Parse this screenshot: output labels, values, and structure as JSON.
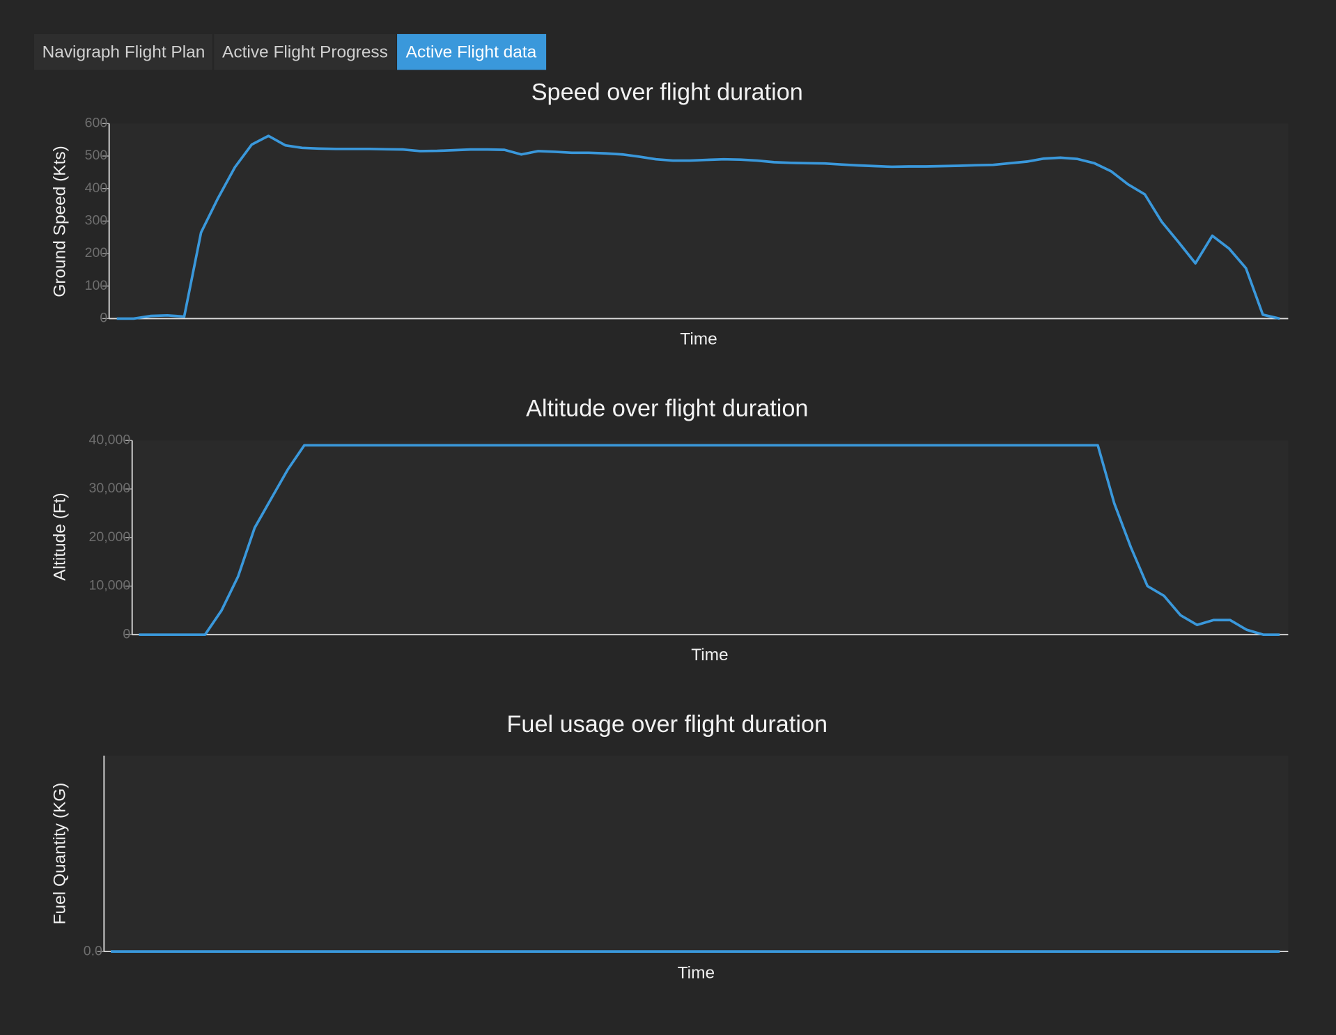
{
  "tabs": [
    "Navigraph Flight Plan",
    "Active Flight Progress",
    "Active Flight data"
  ],
  "chart_data": [
    {
      "type": "line",
      "title": "Speed over flight duration",
      "y_label": "Ground Speed (Kts)",
      "x_label": "Time",
      "color": "#3a98db",
      "values": [
        0,
        0,
        8,
        10,
        6,
        265,
        370,
        465,
        535,
        562,
        533,
        525,
        523,
        522,
        522,
        522,
        521,
        520,
        515,
        516,
        518,
        520,
        520,
        519,
        505,
        515,
        513,
        510,
        510,
        508,
        505,
        498,
        490,
        486,
        486,
        488,
        490,
        489,
        486,
        481,
        479,
        478,
        477,
        474,
        471,
        469,
        467,
        468,
        468,
        469,
        470,
        472,
        473,
        478,
        483,
        492,
        495,
        491,
        478,
        453,
        413,
        382,
        298,
        235,
        170,
        255,
        215,
        155,
        12,
        0
      ],
      "ylim": [
        0,
        600
      ],
      "yticks": [
        0,
        100,
        200,
        300,
        400,
        500,
        600
      ]
    },
    {
      "type": "line",
      "title": "Altitude over flight duration",
      "y_label": "Altitude (Ft)",
      "x_label": "Time",
      "color": "#3a98db",
      "values": [
        0,
        0,
        0,
        0,
        0,
        5000,
        12000,
        22000,
        28000,
        34000,
        39000,
        39000,
        39000,
        39000,
        39000,
        39000,
        39000,
        39000,
        39000,
        39000,
        39000,
        39000,
        39000,
        39000,
        39000,
        39000,
        39000,
        39000,
        39000,
        39000,
        39000,
        39000,
        39000,
        39000,
        39000,
        39000,
        39000,
        39000,
        39000,
        39000,
        39000,
        39000,
        39000,
        39000,
        39000,
        39000,
        39000,
        39000,
        39000,
        39000,
        39000,
        39000,
        39000,
        39000,
        39000,
        39000,
        39000,
        39000,
        39000,
        27000,
        18000,
        10000,
        8000,
        4000,
        2000,
        3000,
        3000,
        1000,
        0,
        0
      ],
      "ylim": [
        0,
        40000
      ],
      "yticks": [
        0,
        {
          "value": 10000,
          "label": "10,000"
        },
        {
          "value": 20000,
          "label": "20,000"
        },
        {
          "value": 30000,
          "label": "30,000"
        },
        {
          "value": 40000,
          "label": "40,000"
        }
      ]
    },
    {
      "type": "line",
      "title": "Fuel usage over flight duration",
      "y_label": "Fuel Quantity (KG)",
      "x_label": "Time",
      "color": "#3a98db",
      "values": [
        0,
        0
      ],
      "ylim": [
        0,
        1
      ],
      "yticks": [
        {
          "value": 0,
          "label": "0.0"
        }
      ]
    }
  ]
}
